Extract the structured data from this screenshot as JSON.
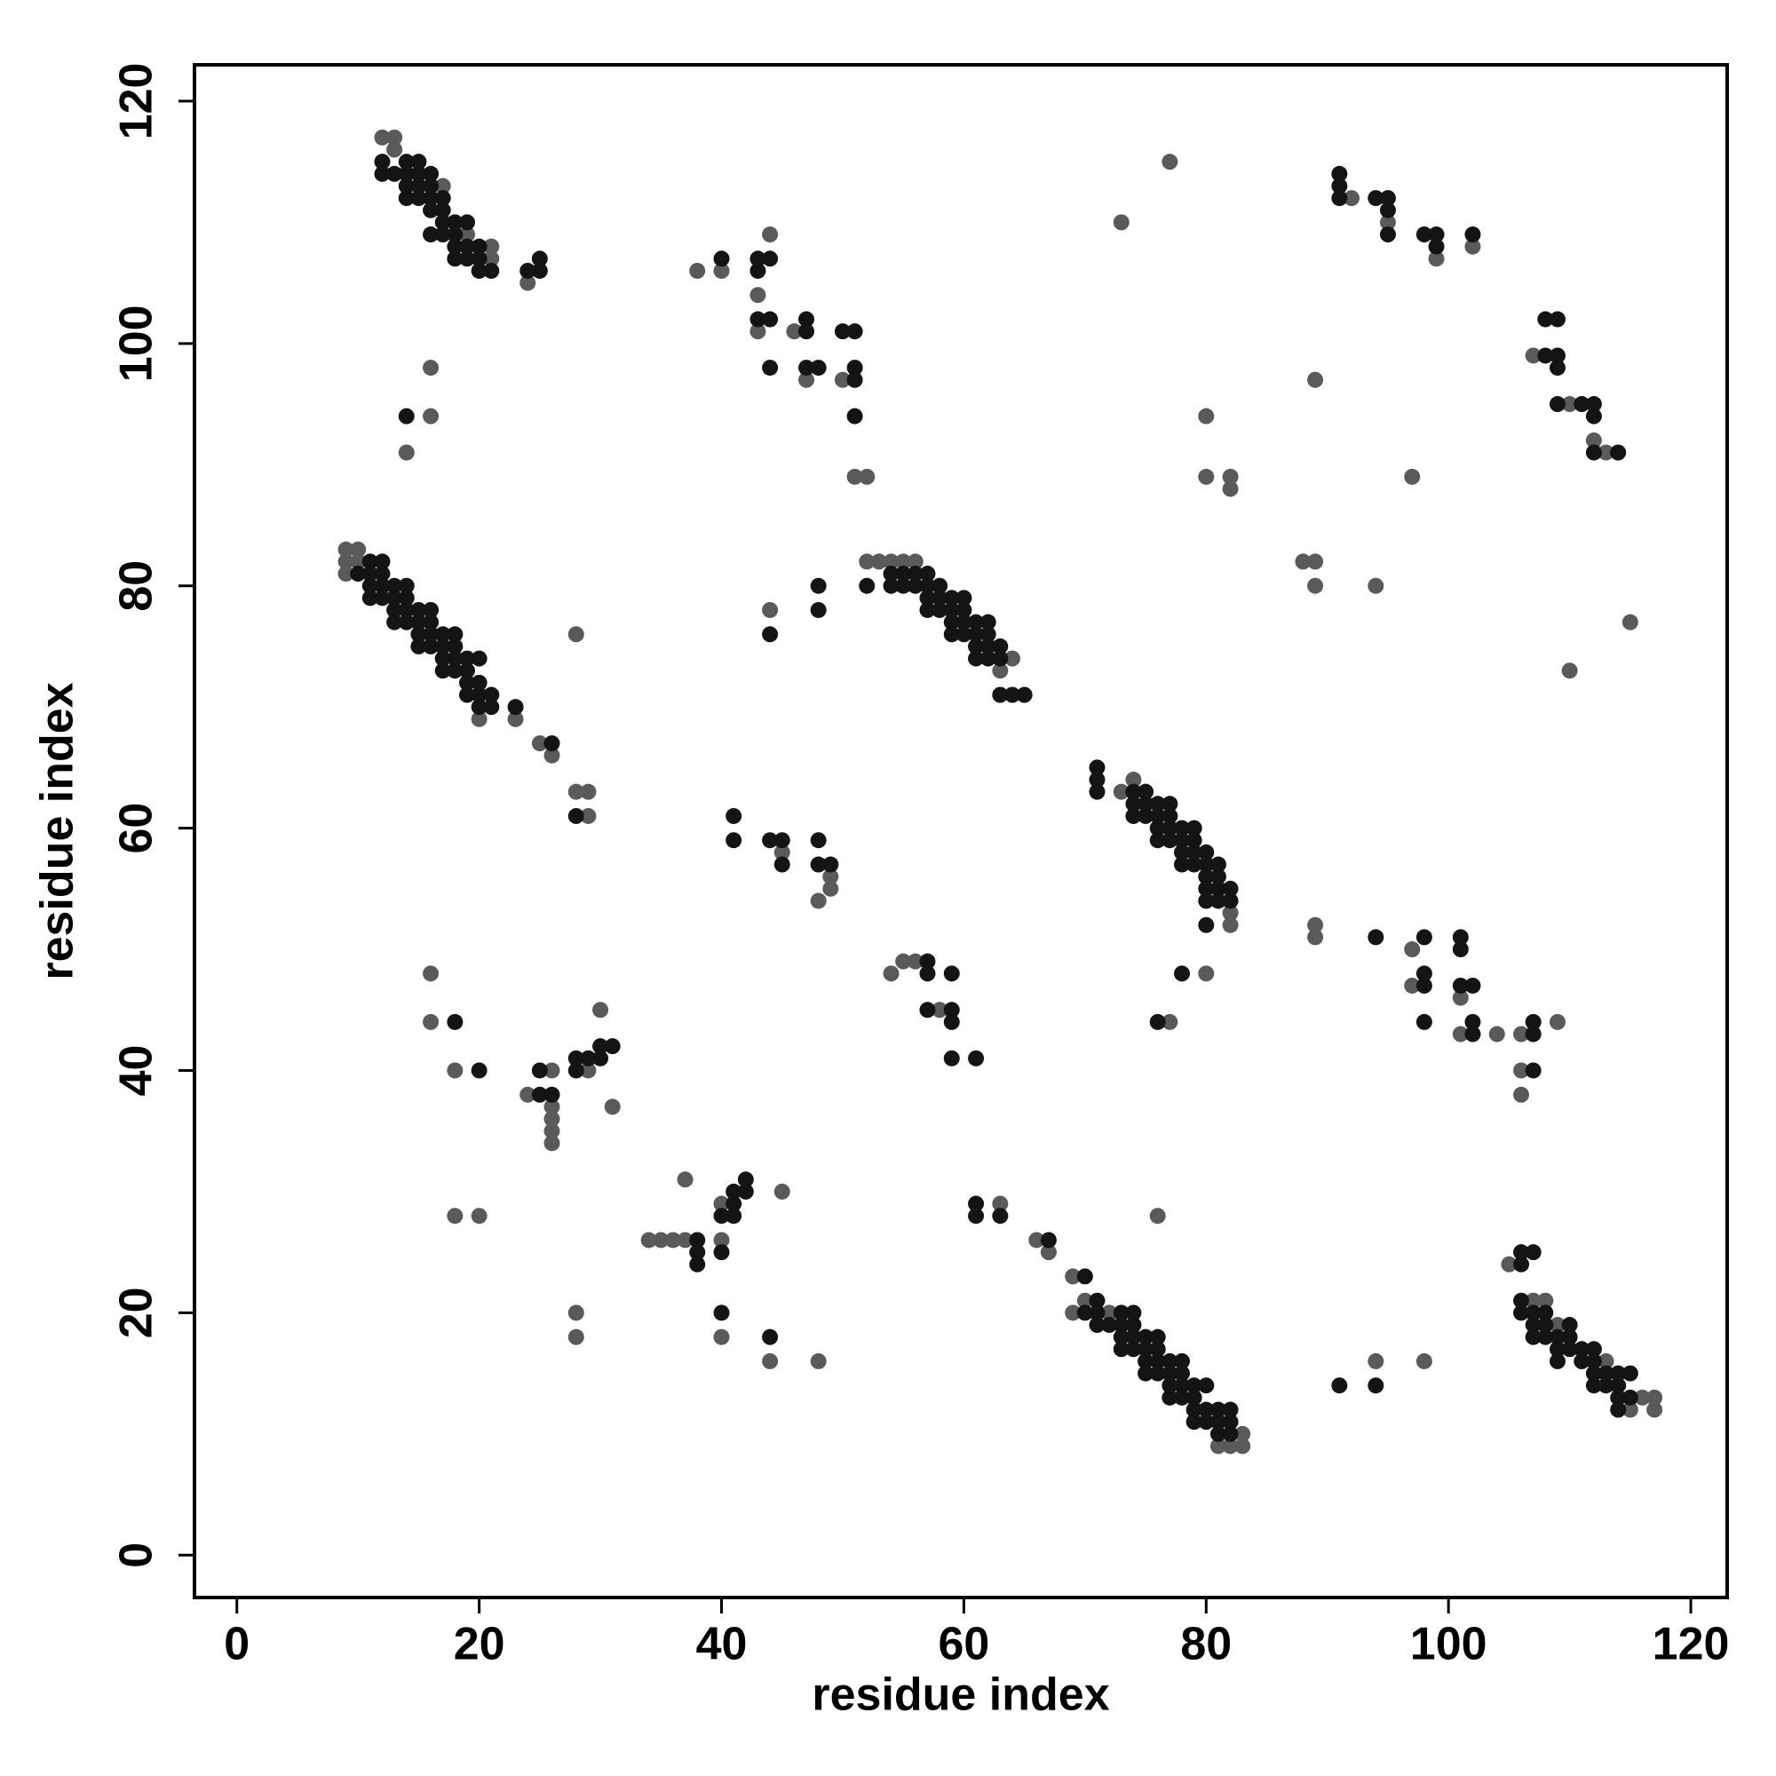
{
  "chart_data": {
    "type": "scatter",
    "xlabel": "residue index",
    "ylabel": "residue index",
    "xlim": [
      -3.5,
      123
    ],
    "ylim": [
      -3.5,
      123
    ],
    "xticks": [
      0,
      20,
      40,
      60,
      80,
      100,
      120
    ],
    "yticks": [
      0,
      20,
      40,
      60,
      80,
      100,
      120
    ],
    "series": [
      {
        "color": "#5a5a5a",
        "x": [
          12,
          13,
          13,
          24,
          16,
          14,
          16,
          38,
          40,
          43,
          43,
          46,
          47,
          50,
          51,
          52,
          44,
          73,
          77,
          92,
          95,
          99,
          102,
          89,
          80,
          80,
          82,
          82,
          97,
          107,
          110,
          112,
          113,
          9,
          10,
          9,
          10,
          9,
          20,
          23,
          25,
          26,
          28,
          29,
          29,
          28,
          44,
          52,
          53,
          54,
          55,
          56,
          64,
          63,
          88,
          89,
          89,
          94,
          110,
          115,
          73,
          74,
          82,
          82,
          89,
          89,
          97,
          97,
          101,
          101,
          104,
          106,
          109,
          106,
          106,
          77,
          80,
          45,
          49,
          49,
          48,
          54,
          55,
          56,
          58,
          16,
          16,
          18,
          18,
          20,
          24,
          26,
          26,
          26,
          26,
          26,
          29,
          30,
          31,
          28,
          28,
          34,
          35,
          36,
          37,
          37,
          40,
          40,
          45,
          40,
          44,
          48,
          63,
          66,
          67,
          69,
          69,
          70,
          72,
          81,
          82,
          83,
          83,
          76,
          94,
          98,
          105,
          107,
          108,
          109,
          113,
          115,
          116,
          117,
          117,
          19,
          21,
          21,
          17
        ],
        "values": [
          117,
          117,
          116,
          105,
          98,
          91,
          94,
          106,
          106,
          104,
          101,
          101,
          97,
          97,
          89,
          89,
          109,
          110,
          115,
          112,
          110,
          107,
          108,
          97,
          94,
          89,
          89,
          88,
          89,
          99,
          95,
          92,
          91,
          83,
          83,
          82,
          82,
          81,
          69,
          69,
          67,
          66,
          63,
          63,
          61,
          76,
          78,
          82,
          82,
          82,
          82,
          82,
          74,
          73,
          82,
          82,
          80,
          80,
          73,
          77,
          63,
          64,
          52,
          53,
          52,
          51,
          50,
          47,
          46,
          43,
          43,
          43,
          44,
          40,
          38,
          44,
          48,
          58,
          56,
          55,
          54,
          48,
          49,
          49,
          45,
          48,
          44,
          40,
          28,
          28,
          38,
          40,
          37,
          36,
          35,
          34,
          40,
          45,
          37,
          20,
          18,
          26,
          26,
          26,
          26,
          31,
          29,
          26,
          30,
          18,
          16,
          16,
          29,
          26,
          25,
          23,
          20,
          21,
          20,
          9,
          9,
          9,
          10,
          28,
          16,
          16,
          24,
          21,
          21,
          19,
          16,
          12,
          13,
          13,
          12,
          109,
          108,
          107,
          113
        ]
      },
      {
        "color": "#141414",
        "x": [
          12,
          12,
          13,
          14,
          15,
          14,
          15,
          16,
          14,
          15,
          14,
          15,
          16,
          16,
          17,
          16,
          17,
          16,
          17,
          18,
          19,
          17,
          18,
          18,
          19,
          20,
          18,
          19,
          20,
          20,
          21,
          24,
          25,
          25,
          14,
          40,
          43,
          44,
          43,
          43,
          44,
          47,
          47,
          44,
          47,
          48,
          50,
          51,
          51,
          51,
          51,
          91,
          91,
          91,
          94,
          95,
          95,
          95,
          98,
          99,
          99,
          102,
          108,
          109,
          108,
          109,
          109,
          109,
          111,
          112,
          112,
          112,
          114,
          11,
          12,
          10,
          11,
          12,
          11,
          12,
          13,
          14,
          11,
          12,
          13,
          14,
          13,
          14,
          15,
          16,
          13,
          14,
          15,
          16,
          15,
          16,
          17,
          18,
          15,
          16,
          17,
          18,
          17,
          18,
          19,
          20,
          17,
          18,
          19,
          19,
          20,
          19,
          20,
          21,
          20,
          21,
          23,
          26,
          28,
          44,
          48,
          48,
          52,
          54,
          55,
          56,
          57,
          54,
          55,
          56,
          57,
          58,
          57,
          58,
          59,
          60,
          57,
          58,
          59,
          60,
          59,
          60,
          61,
          62,
          59,
          60,
          61,
          62,
          61,
          62,
          63,
          61,
          62,
          63,
          63,
          64,
          65,
          71,
          71,
          71,
          74,
          75,
          74,
          75,
          76,
          77,
          74,
          75,
          76,
          77,
          76,
          77,
          78,
          79,
          76,
          77,
          78,
          79,
          78,
          79,
          80,
          78,
          79,
          80,
          81,
          80,
          81,
          80,
          81,
          82,
          80,
          81,
          82,
          80,
          94,
          98,
          101,
          101,
          98,
          98,
          101,
          102,
          98,
          102,
          102,
          107,
          107,
          107,
          76,
          78,
          41,
          41,
          44,
          45,
          45,
          48,
          48,
          49,
          57,
          57,
          59,
          57,
          59,
          59,
          59,
          61,
          18,
          20,
          25,
          25,
          26,
          28,
          28,
          29,
          30,
          30,
          31,
          38,
          38,
          38,
          40,
          40,
          41,
          41,
          41,
          42,
          42,
          40,
          44,
          61,
          61,
          63,
          67,
          70,
          70,
          71,
          71,
          71,
          72,
          73,
          74,
          73,
          74,
          75,
          76,
          73,
          74,
          73,
          74,
          75,
          76,
          75,
          76,
          77,
          78,
          75,
          76,
          77,
          78,
          77,
          78,
          79,
          80,
          77,
          78,
          79,
          79,
          80,
          81,
          82,
          79,
          80,
          81,
          82,
          81,
          82,
          91,
          94,
          106,
          106,
          107,
          106,
          106,
          107,
          108,
          107,
          108,
          110,
          107,
          108,
          109,
          110,
          109,
          110,
          111,
          112,
          109,
          111,
          112,
          112,
          113,
          114,
          115,
          112,
          113,
          114,
          114,
          115,
          114
        ],
        "values": [
          115,
          114,
          114,
          115,
          115,
          114,
          114,
          114,
          113,
          113,
          112,
          112,
          113,
          112,
          112,
          111,
          111,
          109,
          110,
          110,
          110,
          109,
          109,
          108,
          108,
          108,
          107,
          107,
          107,
          106,
          106,
          106,
          106,
          107,
          94,
          107,
          107,
          107,
          106,
          102,
          102,
          101,
          102,
          98,
          98,
          98,
          101,
          101,
          98,
          97,
          94,
          114,
          113,
          112,
          112,
          112,
          111,
          109,
          109,
          109,
          108,
          109,
          102,
          102,
          99,
          99,
          98,
          95,
          95,
          95,
          94,
          91,
          91,
          82,
          82,
          81,
          81,
          81,
          80,
          80,
          80,
          80,
          79,
          79,
          79,
          79,
          78,
          78,
          78,
          78,
          77,
          77,
          77,
          77,
          76,
          76,
          76,
          76,
          75,
          75,
          75,
          75,
          74,
          74,
          74,
          74,
          73,
          73,
          73,
          72,
          72,
          71,
          71,
          71,
          70,
          70,
          70,
          67,
          61,
          76,
          80,
          78,
          80,
          81,
          81,
          81,
          81,
          80,
          80,
          80,
          80,
          80,
          79,
          79,
          79,
          79,
          78,
          78,
          78,
          78,
          77,
          77,
          77,
          77,
          76,
          76,
          76,
          76,
          75,
          75,
          75,
          74,
          74,
          74,
          71,
          71,
          71,
          65,
          64,
          63,
          63,
          63,
          62,
          62,
          62,
          62,
          61,
          61,
          61,
          61,
          60,
          60,
          60,
          60,
          59,
          59,
          59,
          59,
          58,
          58,
          58,
          57,
          57,
          57,
          57,
          56,
          56,
          55,
          55,
          55,
          54,
          54,
          54,
          52,
          51,
          51,
          51,
          50,
          48,
          47,
          47,
          47,
          44,
          44,
          43,
          44,
          43,
          40,
          44,
          48,
          61,
          59,
          59,
          59,
          57,
          59,
          57,
          57,
          49,
          48,
          48,
          45,
          45,
          44,
          41,
          41,
          44,
          40,
          38,
          40,
          38,
          41,
          40,
          41,
          41,
          42,
          42,
          26,
          25,
          24,
          25,
          28,
          28,
          29,
          30,
          30,
          31,
          20,
          18,
          29,
          28,
          28,
          26,
          23,
          20,
          21,
          20,
          19,
          19,
          20,
          20,
          19,
          19,
          18,
          18,
          18,
          18,
          17,
          17,
          17,
          17,
          16,
          16,
          16,
          16,
          15,
          15,
          15,
          15,
          14,
          14,
          14,
          14,
          13,
          13,
          13,
          12,
          12,
          12,
          12,
          11,
          11,
          11,
          11,
          10,
          10,
          14,
          14,
          24,
          25,
          25,
          21,
          20,
          20,
          20,
          19,
          19,
          19,
          18,
          18,
          18,
          18,
          17,
          17,
          17,
          17,
          16,
          16,
          16,
          15,
          15,
          15,
          15,
          14,
          14,
          14,
          13,
          13,
          12
        ]
      }
    ]
  }
}
